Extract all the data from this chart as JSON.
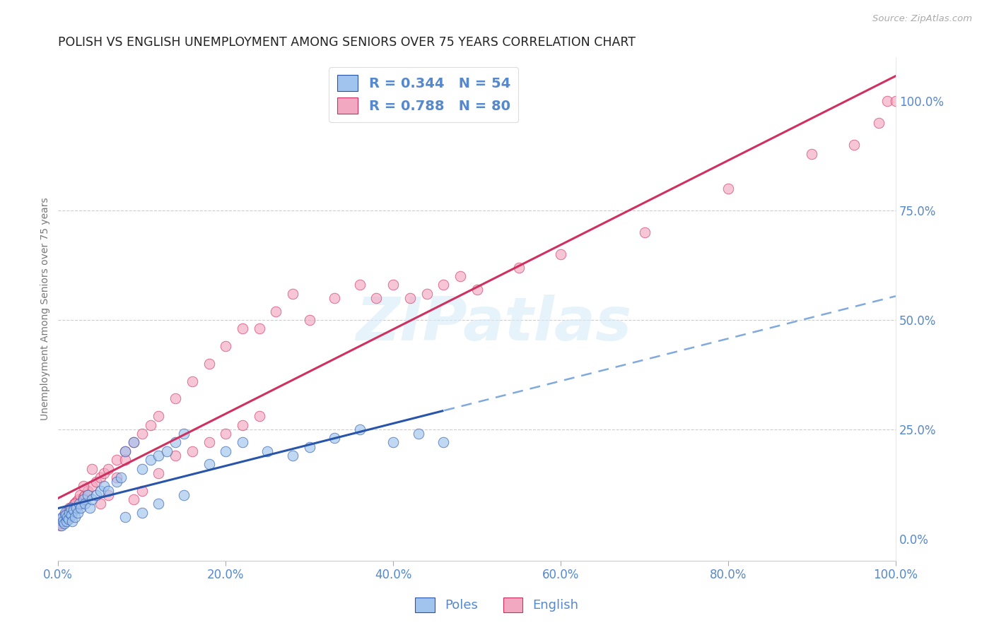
{
  "title": "POLISH VS ENGLISH UNEMPLOYMENT AMONG SENIORS OVER 75 YEARS CORRELATION CHART",
  "source": "Source: ZipAtlas.com",
  "ylabel": "Unemployment Among Seniors over 75 years",
  "watermark": "ZIPatlas",
  "blue_scatter_color": "#A0C4EE",
  "pink_scatter_color": "#F2A8C0",
  "blue_line_color": "#2855AA",
  "pink_line_color": "#D03060",
  "dashed_line_color": "#80AADD",
  "axis_label_color": "#5588CC",
  "title_color": "#222222",
  "bg_color": "#FFFFFF",
  "grid_color": "#CCCCCC",
  "legend_r_poles": "0.344",
  "legend_n_poles": "54",
  "legend_r_english": "0.788",
  "legend_n_english": "80",
  "xlim": [
    0,
    100
  ],
  "ylim": [
    -5,
    110
  ],
  "x_ticks": [
    0,
    20,
    40,
    60,
    80,
    100
  ],
  "y_ticks_right": [
    0,
    25,
    50,
    75,
    100
  ],
  "poles_x": [
    0.3,
    0.4,
    0.5,
    0.6,
    0.7,
    0.8,
    0.9,
    1.0,
    1.1,
    1.2,
    1.3,
    1.5,
    1.6,
    1.7,
    1.8,
    2.0,
    2.2,
    2.3,
    2.5,
    2.7,
    3.0,
    3.2,
    3.5,
    3.8,
    4.0,
    4.5,
    5.0,
    5.5,
    6.0,
    7.0,
    7.5,
    8.0,
    9.0,
    10.0,
    11.0,
    12.0,
    13.0,
    14.0,
    15.0,
    18.0,
    20.0,
    22.0,
    25.0,
    28.0,
    30.0,
    33.0,
    36.0,
    40.0,
    43.0,
    46.0,
    8.0,
    10.0,
    12.0,
    15.0
  ],
  "poles_y": [
    4.5,
    3.0,
    5.0,
    4.0,
    3.5,
    6.0,
    5.5,
    4.0,
    5.0,
    4.5,
    6.0,
    7.0,
    5.5,
    4.0,
    6.5,
    5.0,
    7.0,
    6.0,
    8.0,
    7.0,
    9.0,
    8.0,
    10.0,
    7.0,
    9.0,
    10.0,
    11.0,
    12.0,
    11.0,
    13.0,
    14.0,
    20.0,
    22.0,
    16.0,
    18.0,
    19.0,
    20.0,
    22.0,
    24.0,
    17.0,
    20.0,
    22.0,
    20.0,
    19.0,
    21.0,
    23.0,
    25.0,
    22.0,
    24.0,
    22.0,
    5.0,
    6.0,
    8.0,
    10.0
  ],
  "english_x": [
    0.2,
    0.3,
    0.4,
    0.5,
    0.6,
    0.7,
    0.8,
    0.9,
    1.0,
    1.1,
    1.2,
    1.3,
    1.4,
    1.5,
    1.6,
    1.7,
    1.8,
    1.9,
    2.0,
    2.2,
    2.4,
    2.6,
    2.8,
    3.0,
    3.2,
    3.5,
    4.0,
    4.5,
    5.0,
    5.5,
    6.0,
    7.0,
    8.0,
    9.0,
    10.0,
    11.0,
    12.0,
    14.0,
    16.0,
    18.0,
    20.0,
    22.0,
    24.0,
    26.0,
    28.0,
    30.0,
    33.0,
    36.0,
    38.0,
    40.0,
    42.0,
    44.0,
    46.0,
    48.0,
    50.0,
    55.0,
    60.0,
    70.0,
    80.0,
    90.0,
    95.0,
    98.0,
    99.0,
    100.0,
    2.0,
    3.0,
    4.0,
    5.0,
    6.0,
    7.0,
    8.0,
    9.0,
    10.0,
    12.0,
    14.0,
    16.0,
    18.0,
    20.0,
    22.0,
    24.0
  ],
  "english_y": [
    3.0,
    3.5,
    4.0,
    4.5,
    5.0,
    5.5,
    4.5,
    5.0,
    6.0,
    5.5,
    6.0,
    7.0,
    5.0,
    6.5,
    7.0,
    6.0,
    7.5,
    8.0,
    7.0,
    8.5,
    9.0,
    10.0,
    8.0,
    9.5,
    10.0,
    11.0,
    12.0,
    13.0,
    14.0,
    15.0,
    16.0,
    18.0,
    20.0,
    22.0,
    24.0,
    26.0,
    28.0,
    32.0,
    36.0,
    40.0,
    44.0,
    48.0,
    48.0,
    52.0,
    56.0,
    50.0,
    55.0,
    58.0,
    55.0,
    58.0,
    55.0,
    56.0,
    58.0,
    60.0,
    57.0,
    62.0,
    65.0,
    70.0,
    80.0,
    88.0,
    90.0,
    95.0,
    100.0,
    100.0,
    8.0,
    12.0,
    16.0,
    8.0,
    10.0,
    14.0,
    18.0,
    9.0,
    11.0,
    15.0,
    19.0,
    20.0,
    22.0,
    24.0,
    26.0,
    28.0
  ]
}
